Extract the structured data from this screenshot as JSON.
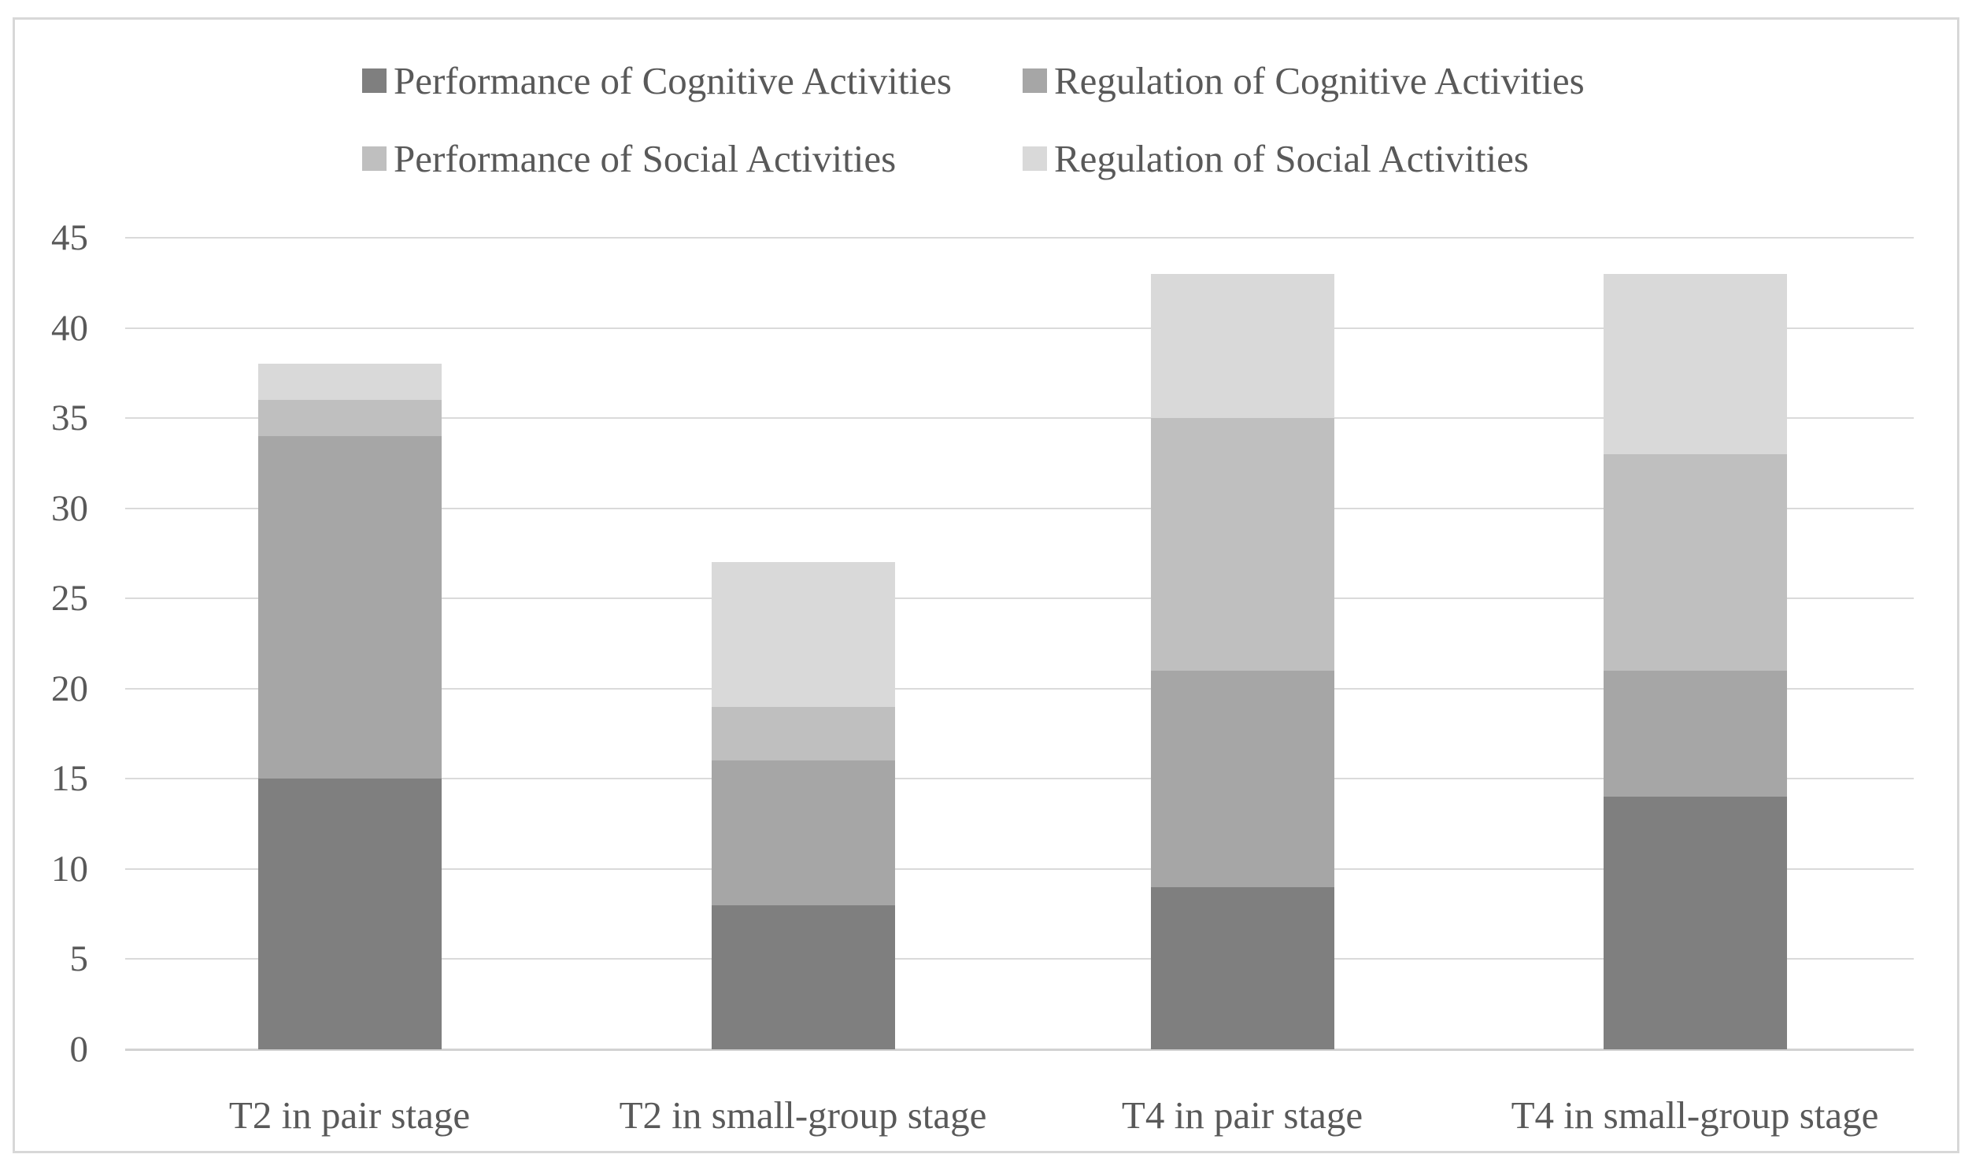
{
  "colors": {
    "background": "#ffffff",
    "border": "#d8d8d8",
    "gridline": "#dadada",
    "baseline": "#d2d2d2",
    "text": "#595959"
  },
  "chart_data": {
    "type": "bar",
    "stacked": true,
    "title": "",
    "xlabel": "",
    "ylabel": "",
    "categories": [
      "T2 in pair stage",
      "T2 in small-group stage",
      "T4 in pair stage",
      "T4 in small-group stage"
    ],
    "series": [
      {
        "name": "Performance of Cognitive Activities",
        "color": "#7f7f7f",
        "values": [
          15,
          8,
          9,
          14
        ]
      },
      {
        "name": "Regulation of Cognitive Activities",
        "color": "#a6a6a6",
        "values": [
          19,
          8,
          12,
          7
        ]
      },
      {
        "name": "Performance of Social Activities",
        "color": "#bfbfbf",
        "values": [
          2,
          3,
          14,
          12
        ]
      },
      {
        "name": "Regulation of Social Activities",
        "color": "#d9d9d9",
        "values": [
          2,
          8,
          8,
          10
        ]
      }
    ],
    "totals": [
      38,
      27,
      43,
      43
    ],
    "ylim": [
      0,
      45
    ],
    "ytick_step": 5,
    "yticks": [
      "0",
      "5",
      "10",
      "15",
      "20",
      "25",
      "30",
      "35",
      "40",
      "45"
    ],
    "grid": true,
    "legend_position": "top"
  }
}
